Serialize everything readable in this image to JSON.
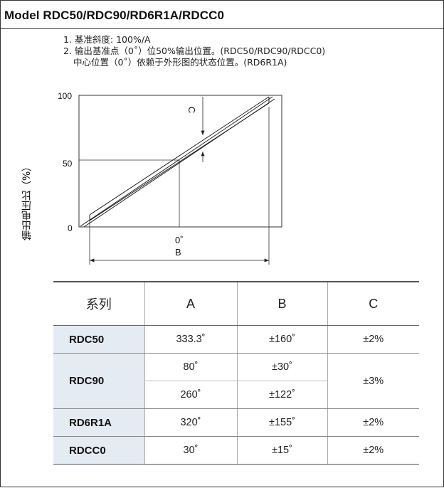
{
  "title": "Model RDC50/RDC90/RD6R1A/RDCC0",
  "notes": [
    "1. 基准斜度: 100%/A",
    "2. 输出基准点（0˚）位50%输出位置。(RDC50/RDC90/RDCC0)",
    "中心位置（0˚）依赖于外形图的状态位置。(RD6R1A)"
  ],
  "chart_data": {
    "type": "line",
    "ylabel": "输出电压比（%）",
    "yticks": [
      "100",
      "50",
      "0"
    ],
    "ylim": [
      0,
      100
    ],
    "x_origin_label": "0˚",
    "dimension_labels": {
      "B": "B",
      "C": "C"
    },
    "series": [
      {
        "x": [
          -0.5,
          0.5
        ],
        "y": [
          0,
          100
        ]
      }
    ]
  },
  "table": {
    "headers": [
      "系列",
      "A",
      "B",
      "C"
    ],
    "rows": [
      {
        "series": "RDC50",
        "A": "333.3˚",
        "B": "±160˚",
        "C": "±2%"
      },
      {
        "series": "RDC90",
        "A": "80˚",
        "B": "±30˚",
        "C": "±3%"
      },
      {
        "series": "",
        "A": "260˚",
        "B": "±122˚",
        "C": ""
      },
      {
        "series": "RD6R1A",
        "A": "320˚",
        "B": "±155˚",
        "C": "±2%"
      },
      {
        "series": "RDCC0",
        "A": "30˚",
        "B": "±15˚",
        "C": "±2%"
      }
    ]
  }
}
